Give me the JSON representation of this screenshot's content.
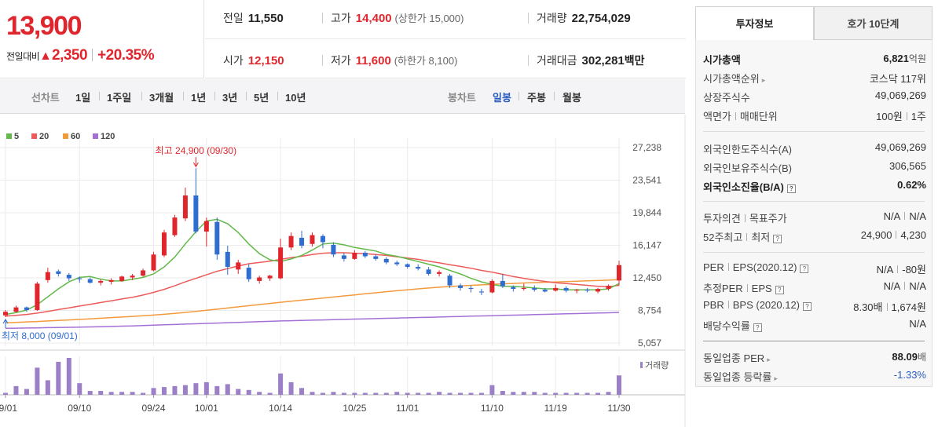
{
  "price": {
    "current": "13,900",
    "change_label": "전일대비",
    "change_amount": "2,350",
    "change_percent": "+20.35%"
  },
  "stats": {
    "prev_close": {
      "label": "전일",
      "value": "11,550"
    },
    "high": {
      "label": "고가",
      "value": "14,400",
      "limit_label": "(상한가 15,000)"
    },
    "volume": {
      "label": "거래량",
      "value": "22,754,029"
    },
    "open": {
      "label": "시가",
      "value": "12,150"
    },
    "low": {
      "label": "저가",
      "value": "11,600",
      "limit_label": "(하한가 8,100)"
    },
    "amount": {
      "label": "거래대금",
      "value": "302,281",
      "unit": "백만"
    }
  },
  "line_tabs": {
    "label": "선차트",
    "items": [
      "1일",
      "1주일",
      "3개월",
      "1년",
      "3년",
      "5년",
      "10년"
    ]
  },
  "candle_tabs": {
    "label": "봉차트",
    "items": [
      "일봉",
      "주봉",
      "월봉"
    ],
    "active": "일봉"
  },
  "chart_data": {
    "type": "candlestick",
    "legend": [
      "5",
      "20",
      "60",
      "120"
    ],
    "legend_colors": {
      "ma5": "#63b94a",
      "ma20": "#ed5b5b",
      "ma60": "#f39a3d",
      "ma120": "#a570d6"
    },
    "y_ticks": [
      "27,238",
      "23,541",
      "19,844",
      "16,147",
      "12,450",
      "8,754",
      "5,057"
    ],
    "y_tick_values": [
      27238,
      23541,
      19844,
      16147,
      12450,
      8754,
      5057
    ],
    "ylim": [
      5057,
      27238
    ],
    "x_ticks": [
      "09/01",
      "09/10",
      "09/24",
      "10/01",
      "10/14",
      "10/25",
      "11/01",
      "11/10",
      "11/19",
      "11/30"
    ],
    "x_tick_index": [
      0,
      7,
      14,
      19,
      26,
      33,
      38,
      46,
      52,
      58
    ],
    "max_annotation": "최고 24,900 (09/30)",
    "min_annotation": "최저 8,000 (09/01)",
    "max_index": 18,
    "max_value": 24900,
    "min_index": 0,
    "min_value": 8000,
    "volume_label": "거래량",
    "candles": [
      {
        "o": 8200,
        "h": 8800,
        "l": 8000,
        "c": 8600
      },
      {
        "o": 8600,
        "h": 9300,
        "l": 8500,
        "c": 9100
      },
      {
        "o": 9100,
        "h": 9200,
        "l": 8600,
        "c": 8800
      },
      {
        "o": 8800,
        "h": 12000,
        "l": 8700,
        "c": 11800
      },
      {
        "o": 12200,
        "h": 13600,
        "l": 11900,
        "c": 13100
      },
      {
        "o": 13200,
        "h": 13400,
        "l": 12600,
        "c": 12900
      },
      {
        "o": 12800,
        "h": 13000,
        "l": 12100,
        "c": 12400
      },
      {
        "o": 12400,
        "h": 12600,
        "l": 11900,
        "c": 12300
      },
      {
        "o": 12300,
        "h": 12500,
        "l": 11800,
        "c": 11900
      },
      {
        "o": 11900,
        "h": 12300,
        "l": 11600,
        "c": 12100
      },
      {
        "o": 12000,
        "h": 12400,
        "l": 11700,
        "c": 12200
      },
      {
        "o": 12100,
        "h": 12700,
        "l": 12000,
        "c": 12600
      },
      {
        "o": 12500,
        "h": 12900,
        "l": 12200,
        "c": 12700
      },
      {
        "o": 12700,
        "h": 13500,
        "l": 12600,
        "c": 13300
      },
      {
        "o": 13300,
        "h": 15400,
        "l": 13200,
        "c": 15100
      },
      {
        "o": 15000,
        "h": 17900,
        "l": 14800,
        "c": 17600
      },
      {
        "o": 17300,
        "h": 19600,
        "l": 17100,
        "c": 19300
      },
      {
        "o": 19200,
        "h": 22700,
        "l": 18900,
        "c": 21800
      },
      {
        "o": 21800,
        "h": 24900,
        "l": 17500,
        "c": 17700
      },
      {
        "o": 17700,
        "h": 19300,
        "l": 16000,
        "c": 18900
      },
      {
        "o": 18800,
        "h": 19300,
        "l": 14500,
        "c": 15100
      },
      {
        "o": 15400,
        "h": 16100,
        "l": 12800,
        "c": 13700
      },
      {
        "o": 13400,
        "h": 14500,
        "l": 12900,
        "c": 14200
      },
      {
        "o": 13600,
        "h": 14000,
        "l": 12000,
        "c": 12300
      },
      {
        "o": 12100,
        "h": 12700,
        "l": 11800,
        "c": 12500
      },
      {
        "o": 12400,
        "h": 12800,
        "l": 12100,
        "c": 12700
      },
      {
        "o": 12400,
        "h": 16900,
        "l": 12300,
        "c": 15900
      },
      {
        "o": 15900,
        "h": 17600,
        "l": 15600,
        "c": 17200
      },
      {
        "o": 17000,
        "h": 17800,
        "l": 15800,
        "c": 16100
      },
      {
        "o": 16300,
        "h": 17600,
        "l": 16000,
        "c": 17300
      },
      {
        "o": 17200,
        "h": 17400,
        "l": 15800,
        "c": 16500
      },
      {
        "o": 16200,
        "h": 16500,
        "l": 14800,
        "c": 15100
      },
      {
        "o": 15000,
        "h": 15300,
        "l": 14300,
        "c": 14600
      },
      {
        "o": 14600,
        "h": 15600,
        "l": 14500,
        "c": 15300
      },
      {
        "o": 15300,
        "h": 15500,
        "l": 14700,
        "c": 14900
      },
      {
        "o": 14900,
        "h": 15100,
        "l": 14400,
        "c": 14600
      },
      {
        "o": 14600,
        "h": 14800,
        "l": 14000,
        "c": 14200
      },
      {
        "o": 14200,
        "h": 14400,
        "l": 13800,
        "c": 14000
      },
      {
        "o": 14000,
        "h": 14100,
        "l": 13500,
        "c": 13700
      },
      {
        "o": 13700,
        "h": 14000,
        "l": 13300,
        "c": 13500
      },
      {
        "o": 13400,
        "h": 13700,
        "l": 12700,
        "c": 12900
      },
      {
        "o": 12900,
        "h": 13300,
        "l": 12600,
        "c": 13100
      },
      {
        "o": 12700,
        "h": 12900,
        "l": 11300,
        "c": 11600
      },
      {
        "o": 11600,
        "h": 11800,
        "l": 11000,
        "c": 11300
      },
      {
        "o": 11300,
        "h": 11600,
        "l": 10800,
        "c": 11200
      },
      {
        "o": 10900,
        "h": 11200,
        "l": 10500,
        "c": 10800
      },
      {
        "o": 10800,
        "h": 12300,
        "l": 10700,
        "c": 12100
      },
      {
        "o": 12100,
        "h": 12900,
        "l": 11300,
        "c": 11500
      },
      {
        "o": 11400,
        "h": 11600,
        "l": 10900,
        "c": 11200
      },
      {
        "o": 11200,
        "h": 11800,
        "l": 11000,
        "c": 11300
      },
      {
        "o": 11300,
        "h": 11600,
        "l": 10900,
        "c": 11100
      },
      {
        "o": 11100,
        "h": 11300,
        "l": 10800,
        "c": 10900
      },
      {
        "o": 11000,
        "h": 11700,
        "l": 10900,
        "c": 11300
      },
      {
        "o": 11300,
        "h": 11500,
        "l": 10800,
        "c": 11000
      },
      {
        "o": 11000,
        "h": 11200,
        "l": 10700,
        "c": 11100
      },
      {
        "o": 11100,
        "h": 11300,
        "l": 10800,
        "c": 11000
      },
      {
        "o": 10900,
        "h": 11300,
        "l": 10700,
        "c": 11200
      },
      {
        "o": 11200,
        "h": 11700,
        "l": 11000,
        "c": 11550
      },
      {
        "o": 12150,
        "h": 14400,
        "l": 11600,
        "c": 13900
      }
    ],
    "ma5": [
      8300,
      8500,
      8800,
      9400,
      10300,
      11200,
      12000,
      12500,
      12600,
      12300,
      12100,
      12100,
      12300,
      12500,
      12900,
      13700,
      14800,
      16300,
      17700,
      18900,
      19100,
      18600,
      17600,
      16300,
      15200,
      14500,
      14300,
      14600,
      15000,
      15600,
      16300,
      16400,
      16200,
      15900,
      15700,
      15500,
      15100,
      14900,
      14600,
      14300,
      14000,
      13700,
      13300,
      12900,
      12400,
      12000,
      11700,
      11500,
      11500,
      11400,
      11300,
      11200,
      11200,
      11100,
      11100,
      11100,
      11100,
      11200,
      11800
    ],
    "ma20": [
      8100,
      8200,
      8300,
      8450,
      8650,
      8850,
      9050,
      9250,
      9450,
      9650,
      9850,
      10050,
      10250,
      10500,
      10800,
      11150,
      11550,
      12000,
      12400,
      12800,
      13200,
      13500,
      13800,
      14050,
      14200,
      14350,
      14550,
      14750,
      14900,
      15100,
      15250,
      15300,
      15300,
      15250,
      15200,
      15100,
      15000,
      14850,
      14700,
      14550,
      14350,
      14150,
      13950,
      13750,
      13550,
      13300,
      13100,
      12850,
      12600,
      12400,
      12200,
      12050,
      11900,
      11800,
      11700,
      11600,
      11500,
      11450,
      11600
    ],
    "ma60": [
      7350,
      7400,
      7450,
      7500,
      7560,
      7620,
      7680,
      7740,
      7800,
      7870,
      7940,
      8010,
      8080,
      8150,
      8230,
      8320,
      8420,
      8530,
      8650,
      8770,
      8900,
      9030,
      9160,
      9290,
      9420,
      9550,
      9680,
      9800,
      9920,
      10040,
      10160,
      10280,
      10400,
      10520,
      10640,
      10760,
      10880,
      10990,
      11100,
      11200,
      11300,
      11390,
      11470,
      11540,
      11600,
      11660,
      11720,
      11770,
      11820,
      11870,
      11910,
      11950,
      11990,
      12030,
      12070,
      12110,
      12150,
      12190,
      12250
    ],
    "ma120": [
      6720,
      6740,
      6760,
      6780,
      6800,
      6820,
      6840,
      6860,
      6880,
      6910,
      6940,
      6970,
      7000,
      7040,
      7080,
      7120,
      7160,
      7200,
      7240,
      7280,
      7320,
      7360,
      7400,
      7440,
      7480,
      7520,
      7560,
      7590,
      7620,
      7650,
      7680,
      7710,
      7740,
      7770,
      7800,
      7830,
      7860,
      7890,
      7920,
      7950,
      7980,
      8010,
      8040,
      8070,
      8100,
      8130,
      8160,
      8190,
      8220,
      8250,
      8280,
      8310,
      8340,
      8370,
      8400,
      8430,
      8460,
      8490,
      8530
    ],
    "volume": [
      2,
      9,
      6,
      28,
      15,
      34,
      38,
      12,
      4,
      4,
      3,
      3,
      3,
      2,
      7,
      8,
      9,
      10,
      12,
      13,
      9,
      11,
      6,
      5,
      3,
      2,
      22,
      13,
      7,
      3,
      2,
      3,
      2,
      2,
      2,
      2,
      2,
      3,
      2,
      2,
      2,
      3,
      2,
      2,
      2,
      2,
      10,
      4,
      3,
      3,
      3,
      2,
      2,
      2,
      2,
      2,
      2,
      3,
      20
    ],
    "colors": {
      "up": "#e0262d",
      "down": "#2f6dd0",
      "grid": "#ebebeb"
    }
  },
  "side": {
    "tab_invest": "투자정보",
    "tab_quote": "호가 10단계",
    "market_cap": {
      "label": "시가총액",
      "value": "6,821",
      "unit": "억원"
    },
    "market_cap_rank": {
      "label": "시가총액순위",
      "value": "코스닥 117위"
    },
    "listed_shares": {
      "label": "상장주식수",
      "value": "49,069,269"
    },
    "par_value": {
      "label": "액면가",
      "label2": "매매단위",
      "value": "100원",
      "value2": "1주"
    },
    "foreign_limit": {
      "label": "외국인한도주식수(A)",
      "value": "49,069,269"
    },
    "foreign_hold": {
      "label": "외국인보유주식수(B)",
      "value": "306,565"
    },
    "foreign_rate": {
      "label": "외국인소진율(B/A)",
      "value": "0.62%"
    },
    "opinion": {
      "label": "투자의견",
      "label2": "목표주가",
      "value": "N/A",
      "value2": "N/A"
    },
    "week52": {
      "label": "52주최고",
      "label2": "최저",
      "value": "24,900",
      "value2": "4,230"
    },
    "per_eps": {
      "label": "PER",
      "label2": "EPS(2020.12)",
      "value": "N/A",
      "value2": "-80원"
    },
    "est_per_eps": {
      "label": "추정PER",
      "label2": "EPS",
      "value": "N/A",
      "value2": "N/A"
    },
    "pbr_bps": {
      "label": "PBR",
      "label2": "BPS (2020.12)",
      "value": "8.30배",
      "value2": "1,674원"
    },
    "dividend": {
      "label": "배당수익률",
      "value": "N/A"
    },
    "industry_per": {
      "label": "동일업종 PER",
      "value": "88.09",
      "unit": "배"
    },
    "industry_change": {
      "label": "동일업종 등락률",
      "value": "-1.33%"
    }
  }
}
